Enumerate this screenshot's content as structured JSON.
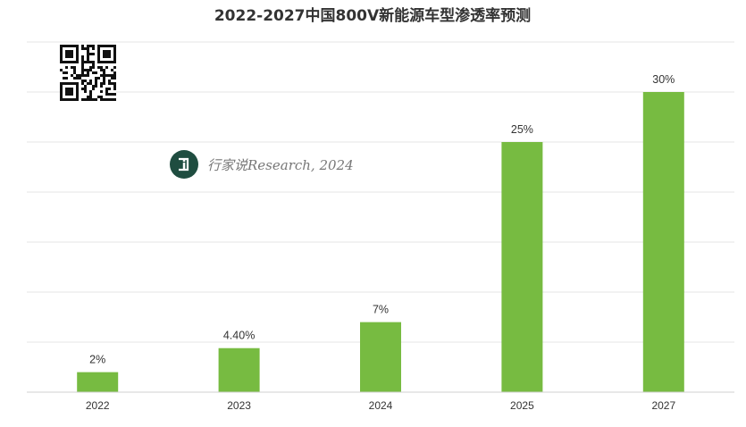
{
  "chart_data": {
    "type": "bar",
    "title": "2022-2027中国800V新能源车型渗透率预测",
    "categories": [
      "2022",
      "2023",
      "2024",
      "2025",
      "2027"
    ],
    "values": [
      2,
      4.4,
      7,
      25,
      30
    ],
    "data_labels": [
      "2%",
      "4.40%",
      "7%",
      "25%",
      "30%"
    ],
    "xlabel": "",
    "ylabel": "",
    "ylim": [
      0,
      35
    ],
    "grid": true,
    "bar_color": "#77bb41",
    "watermark": "行家说Research, 2024",
    "watermark_logo": "行家说 logo",
    "qr_code": "qr-code"
  }
}
